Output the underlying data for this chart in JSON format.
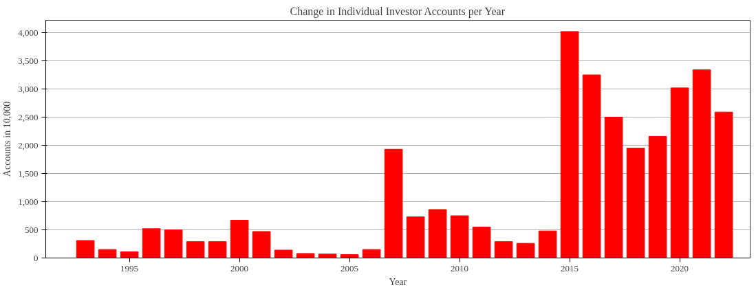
{
  "chart_data": {
    "type": "bar",
    "title": "Change in Individual Investor Accounts per Year",
    "xlabel": "Year",
    "ylabel": "Accounts in 10,000",
    "x": [
      1993,
      1994,
      1995,
      1996,
      1997,
      1998,
      1999,
      2000,
      2001,
      2002,
      2003,
      2004,
      2005,
      2006,
      2007,
      2008,
      2009,
      2010,
      2011,
      2012,
      2013,
      2014,
      2015,
      2016,
      2017,
      2018,
      2019,
      2020,
      2021,
      2022
    ],
    "values": [
      310,
      150,
      110,
      520,
      500,
      290,
      290,
      670,
      470,
      140,
      80,
      70,
      60,
      150,
      1930,
      730,
      860,
      750,
      550,
      290,
      260,
      480,
      4020,
      3250,
      2500,
      1950,
      2160,
      3020,
      3340,
      2590
    ],
    "color": "#ff0000",
    "xlim": [
      1991.2,
      2023.2
    ],
    "xticks": [
      1995,
      2000,
      2005,
      2010,
      2015,
      2020
    ],
    "ylim": [
      0,
      4220
    ],
    "yticks": [
      {
        "value": 0,
        "label": "0"
      },
      {
        "value": 500,
        "label": "500"
      },
      {
        "value": 1000,
        "label": "1,000"
      },
      {
        "value": 1500,
        "label": "1,500"
      },
      {
        "value": 2000,
        "label": "2,000"
      },
      {
        "value": 2500,
        "label": "2,500"
      },
      {
        "value": 3000,
        "label": "3,000"
      },
      {
        "value": 3500,
        "label": "3,500"
      },
      {
        "value": 4000,
        "label": "4,000"
      }
    ],
    "grid": "y"
  }
}
